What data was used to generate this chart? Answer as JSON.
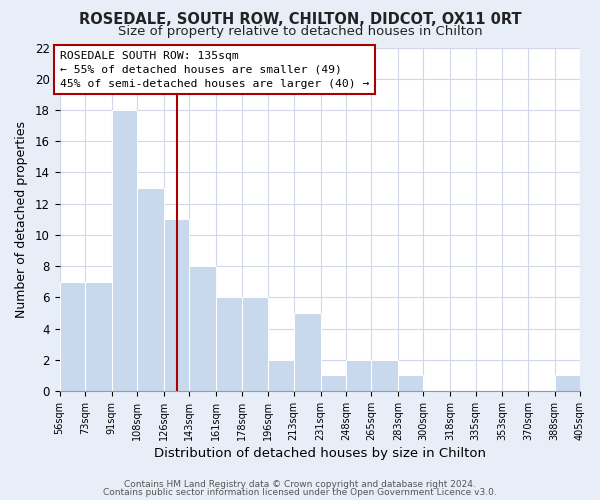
{
  "title": "ROSEDALE, SOUTH ROW, CHILTON, DIDCOT, OX11 0RT",
  "subtitle": "Size of property relative to detached houses in Chilton",
  "xlabel": "Distribution of detached houses by size in Chilton",
  "ylabel": "Number of detached properties",
  "bar_edges": [
    56,
    73,
    91,
    108,
    126,
    143,
    161,
    178,
    196,
    213,
    231,
    248,
    265,
    283,
    300,
    318,
    335,
    353,
    370,
    388,
    405
  ],
  "bar_heights": [
    7,
    7,
    18,
    13,
    11,
    8,
    6,
    6,
    2,
    5,
    1,
    2,
    2,
    1,
    0,
    0,
    0,
    0,
    0,
    1
  ],
  "bar_color": "#c8d9ee",
  "bar_edge_color": "#ffffff",
  "vline_x": 135,
  "vline_color": "#aa0000",
  "annotation_text_line1": "ROSEDALE SOUTH ROW: 135sqm",
  "annotation_text_line2": "← 55% of detached houses are smaller (49)",
  "annotation_text_line3": "45% of semi-detached houses are larger (40) →",
  "box_edge_color": "#aa0000",
  "ylim": [
    0,
    22
  ],
  "yticks": [
    0,
    2,
    4,
    6,
    8,
    10,
    12,
    14,
    16,
    18,
    20,
    22
  ],
  "tick_labels": [
    "56sqm",
    "73sqm",
    "91sqm",
    "108sqm",
    "126sqm",
    "143sqm",
    "161sqm",
    "178sqm",
    "196sqm",
    "213sqm",
    "231sqm",
    "248sqm",
    "265sqm",
    "283sqm",
    "300sqm",
    "318sqm",
    "335sqm",
    "353sqm",
    "370sqm",
    "388sqm",
    "405sqm"
  ],
  "footer_line1": "Contains HM Land Registry data © Crown copyright and database right 2024.",
  "footer_line2": "Contains public sector information licensed under the Open Government Licence v3.0.",
  "plot_bg_color": "#ffffff",
  "fig_bg_color": "#e8eef8",
  "grid_color": "#d0d8e8",
  "title_fontsize": 10.5,
  "subtitle_fontsize": 9.5
}
